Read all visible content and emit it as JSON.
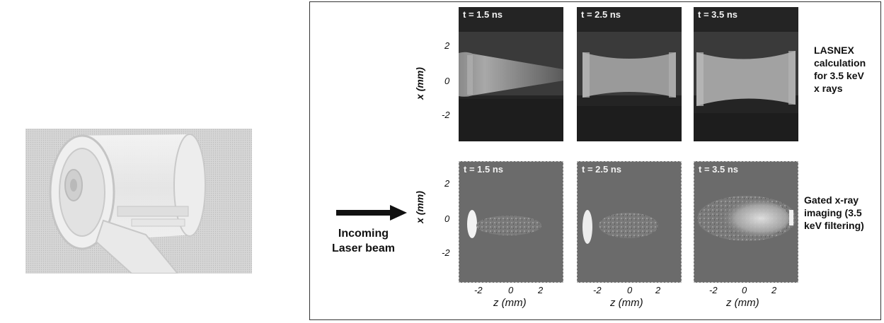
{
  "figure": {
    "calc_panels": [
      {
        "label": "t = 1.5 ns"
      },
      {
        "label": "t = 2.5 ns"
      },
      {
        "label": "t = 3.5 ns"
      }
    ],
    "exp_panels": [
      {
        "label": "t = 1.5 ns"
      },
      {
        "label": "t = 2.5 ns"
      },
      {
        "label": "t = 3.5 ns"
      }
    ],
    "y_axis": {
      "label": "x (mm)",
      "ticks": [
        "2",
        "0",
        "-2"
      ]
    },
    "x_axis": {
      "label": "z  (mm)",
      "ticks": [
        "-2",
        "0",
        "2"
      ]
    },
    "calc_caption": "LASNEX\ncalculation\nfor 3.5 keV\nx rays",
    "exp_caption": "Gated x-ray\nimaging (3.5\nkeV filtering)",
    "incoming_label": "Incoming\nLaser beam"
  }
}
